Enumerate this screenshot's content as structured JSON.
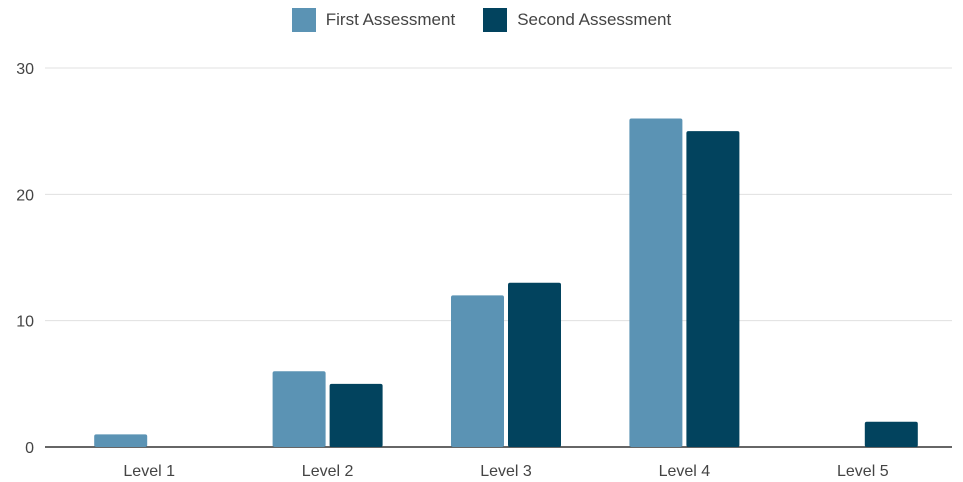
{
  "chart_data": {
    "type": "bar",
    "categories": [
      "Level 1",
      "Level 2",
      "Level 3",
      "Level 4",
      "Level 5"
    ],
    "series": [
      {
        "name": "First Assessment",
        "values": [
          1,
          6,
          12,
          26,
          0
        ],
        "color": "#5b93b4"
      },
      {
        "name": "Second Assessment",
        "values": [
          0,
          5,
          13,
          25,
          2
        ],
        "color": "#02435e"
      }
    ],
    "title": "",
    "xlabel": "",
    "ylabel": "",
    "ylim": [
      0,
      30
    ],
    "yticks": [
      "0",
      "10",
      "20",
      "30"
    ],
    "grid": true,
    "legend_position": "top-center"
  },
  "colors": {
    "gridline": "#e0e0e0",
    "axis": "#333333",
    "tick_text": "#444444"
  }
}
